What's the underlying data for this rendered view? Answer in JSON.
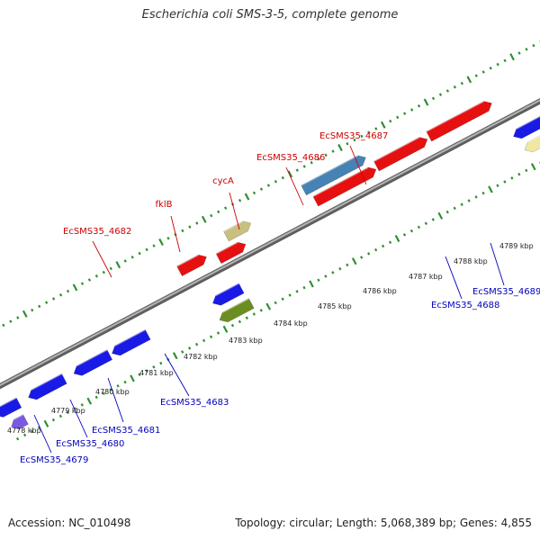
{
  "title": "Escherichia coli SMS-3-5, complete genome",
  "footer": {
    "accession": "Accession: NC_010498",
    "summary": "Topology: circular; Length: 5,068,389 bp; Genes: 4,855"
  },
  "colors": {
    "backbone": "#8a8a8a",
    "tick_green": "#2f8f2f",
    "label_red": "#cc0000",
    "label_blue": "#0000bb",
    "leader_red": "#cc0000",
    "leader_blue": "#0000bb"
  },
  "scale": {
    "tick_labels": [
      "4778 kbp",
      "4779 kbp",
      "4780 kbp",
      "4781 kbp",
      "4782 kbp",
      "4783 kbp",
      "4784 kbp",
      "4785 kbp",
      "4786 kbp",
      "4787 kbp",
      "4788 kbp",
      "4789 kbp"
    ]
  },
  "genes": [
    {
      "color": "#1a1ae6",
      "strand": "-"
    },
    {
      "color": "#1a1ae6",
      "strand": "-"
    },
    {
      "color": "#1a1ae6",
      "strand": "-"
    },
    {
      "color": "#1a1ae6",
      "strand": "-"
    },
    {
      "color": "#7a5ae0",
      "strand": "-"
    },
    {
      "color": "#e61010",
      "strand": "+"
    },
    {
      "color": "#1a1ae6",
      "strand": "-"
    },
    {
      "color": "#6b8e23",
      "strand": "-"
    },
    {
      "color": "#c8c080",
      "strand": "+"
    },
    {
      "color": "#e61010",
      "strand": "+"
    },
    {
      "color": "#4682b4",
      "strand": "+"
    },
    {
      "color": "#e61010",
      "strand": "+"
    },
    {
      "color": "#e61010",
      "strand": "+"
    },
    {
      "color": "#e61010",
      "strand": "+"
    },
    {
      "color": "#1a1ae6",
      "strand": "-"
    },
    {
      "color": "#1a1ae6",
      "strand": "-"
    },
    {
      "color": "#1a1ae6",
      "strand": "-"
    },
    {
      "color": "#f0e8a0",
      "strand": "-"
    },
    {
      "color": "#20c8d8",
      "strand": "-"
    },
    {
      "color": "#6b8e23",
      "strand": "-"
    },
    {
      "color": "#ff9a1a",
      "strand": "+"
    }
  ],
  "gene_labels": [
    {
      "text": "EcSMS35_4682",
      "color": "#cc0000"
    },
    {
      "text": "fklB",
      "color": "#cc0000"
    },
    {
      "text": "cycA",
      "color": "#cc0000"
    },
    {
      "text": "EcSMS35_4686",
      "color": "#cc0000"
    },
    {
      "text": "EcSMS35_4687",
      "color": "#cc0000"
    },
    {
      "text": "EcSMS35_4679",
      "color": "#0000bb"
    },
    {
      "text": "EcSMS35_4680",
      "color": "#0000bb"
    },
    {
      "text": "EcSMS35_4681",
      "color": "#0000bb"
    },
    {
      "text": "EcSMS35_4683",
      "color": "#0000bb"
    },
    {
      "text": "EcSMS35_4688",
      "color": "#0000bb"
    },
    {
      "text": "EcSMS35_4689",
      "color": "#0000bb"
    }
  ]
}
